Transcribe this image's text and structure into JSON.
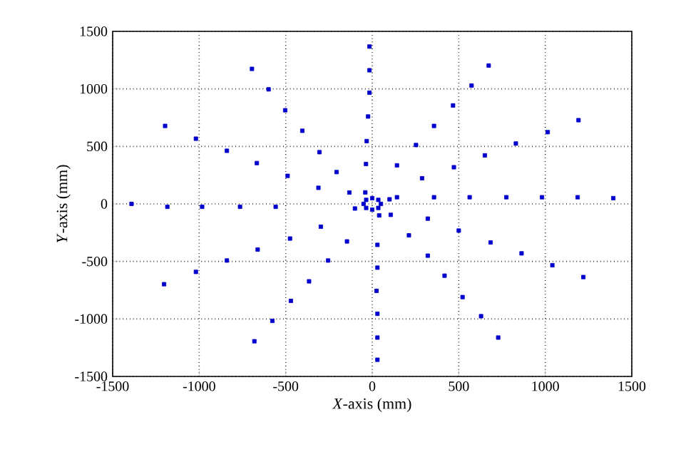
{
  "chart_data": {
    "type": "scatter",
    "xlabel": "*X*-axis (mm)",
    "ylabel": "*Y*-axis (mm)",
    "xlim": [
      -1500,
      1500
    ],
    "ylim": [
      -1500,
      1500
    ],
    "xticks": [
      -1500,
      -1000,
      -500,
      0,
      500,
      1000,
      1500
    ],
    "yticks": [
      -1500,
      -1000,
      -500,
      0,
      500,
      1000,
      1500
    ],
    "grid": true,
    "marker": "square",
    "series": [
      {
        "color": "#0000cc",
        "x": [
          -1391,
          -1184,
          -983,
          -764,
          -558,
          -1197,
          -1019,
          -840,
          -667,
          -489,
          -311,
          -695,
          -599,
          -503,
          -404,
          -305,
          -206,
          -16,
          -16,
          -16,
          -24,
          -32,
          -36,
          673,
          574,
          467,
          357,
          253,
          143,
          1192,
          1014,
          830,
          651,
          472,
          288,
          1393,
          1187,
          981,
          775,
          563,
          357,
          143,
          -1203,
          -1019,
          -840,
          -662,
          -475,
          -297,
          -146,
          -255,
          -365,
          -470,
          -577,
          -681,
          30,
          30,
          25,
          30,
          30,
          30,
          212,
          321,
          321,
          418,
          522,
          629,
          728,
          500,
          684,
          863,
          1041,
          1220,
          107,
          -132,
          50,
          35,
          0,
          -35,
          -50,
          -35,
          0,
          35,
          100,
          -100,
          40,
          -40
        ],
        "values": [
          0,
          -25,
          -25,
          -25,
          -25,
          678,
          567,
          462,
          355,
          244,
          140,
          1174,
          996,
          814,
          636,
          450,
          277,
          1368,
          1162,
          967,
          760,
          546,
          347,
          1203,
          1029,
          856,
          678,
          512,
          335,
          728,
          624,
          525,
          422,
          319,
          223,
          50,
          58,
          58,
          58,
          58,
          58,
          58,
          -698,
          -591,
          -492,
          -397,
          -301,
          -198,
          -326,
          -492,
          -673,
          -843,
          -1017,
          -1194,
          -356,
          -554,
          -756,
          -955,
          -1162,
          -1355,
          -273,
          -128,
          -450,
          -624,
          -810,
          -976,
          -1162,
          -232,
          -335,
          -430,
          -533,
          -636,
          -95,
          99,
          0,
          35,
          50,
          35,
          0,
          -35,
          -50,
          -35,
          40,
          -40,
          -100,
          100
        ]
      }
    ]
  }
}
